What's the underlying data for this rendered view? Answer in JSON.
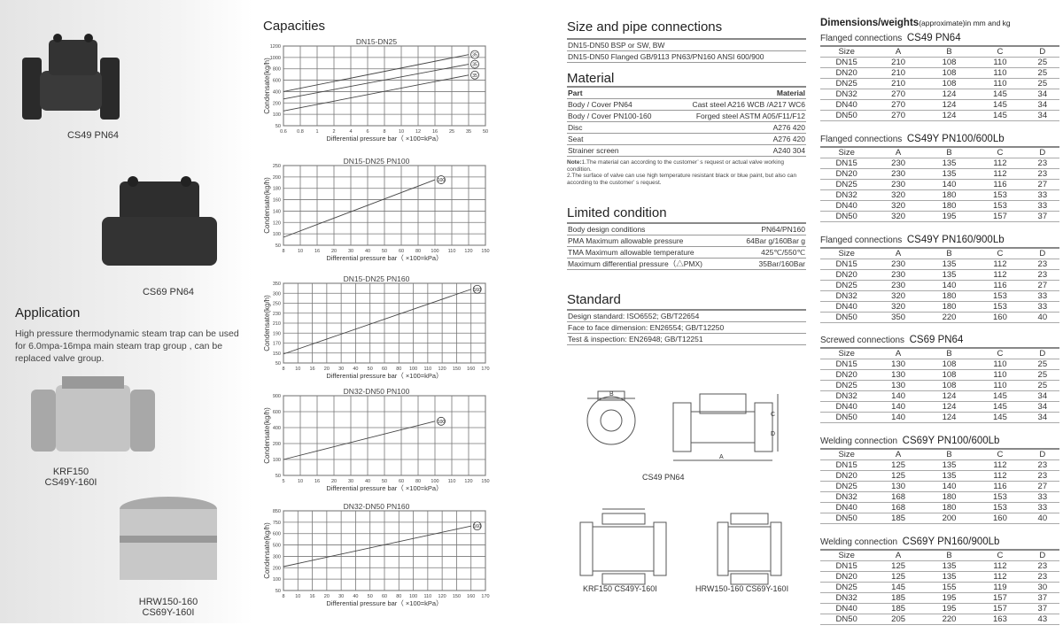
{
  "left": {
    "products": [
      {
        "label": "CS49 PN64"
      },
      {
        "label": "CS69 PN64"
      },
      {
        "label": "KRF150",
        "label2": "CS49Y-160I"
      },
      {
        "label": "HRW150-160",
        "label2": "CS69Y-160I"
      }
    ],
    "application_title": "Application",
    "application_text": "High pressure thermodynamic steam trap can be used for 6.0mpa-16mpa main steam trap group , can be replaced valve group."
  },
  "capacities_title": "Capacities",
  "chart_data": [
    {
      "type": "line",
      "title": "DN15-DN25",
      "xlabel": "Differential pressure bar（ ×100=kPa）",
      "ylabel": "Condensate(kg/h)",
      "xticks": [
        0.6,
        0.8,
        1,
        2,
        4,
        6,
        8,
        10,
        12,
        16,
        25,
        35,
        50
      ],
      "yticks": [
        50,
        100,
        200,
        400,
        600,
        800,
        1000,
        1200
      ],
      "grid": true,
      "series": [
        {
          "name": "35",
          "x": [
            0.6,
            35
          ],
          "y": [
            400,
            1050
          ]
        },
        {
          "name": "35",
          "x": [
            0.6,
            35
          ],
          "y": [
            270,
            880
          ]
        },
        {
          "name": "35",
          "x": [
            0.6,
            35
          ],
          "y": [
            130,
            690
          ]
        }
      ]
    },
    {
      "type": "line",
      "title": "DN15-DN25 PN100",
      "xlabel": "Differential pressure bar（ ×100=kPa）",
      "ylabel": "Condensate(kg/h)",
      "xticks": [
        8,
        10,
        16,
        20,
        30,
        40,
        50,
        60,
        80,
        100,
        110,
        120,
        150
      ],
      "yticks": [
        50,
        100,
        120,
        140,
        160,
        180,
        200,
        250
      ],
      "grid": true,
      "series": [
        {
          "name": "100",
          "x": [
            8,
            100
          ],
          "y": [
            85,
            195
          ]
        }
      ]
    },
    {
      "type": "line",
      "title": "DN15-DN25 PN160",
      "xlabel": "Differential pressure bar（ ×100=kPa）",
      "ylabel": "Condensate(kg/h)",
      "xticks": [
        8,
        10,
        16,
        20,
        30,
        40,
        50,
        60,
        80,
        100,
        110,
        120,
        150,
        160,
        170
      ],
      "yticks": [
        50,
        150,
        170,
        190,
        210,
        230,
        250,
        300,
        350
      ],
      "grid": true,
      "series": [
        {
          "name": "160",
          "x": [
            8,
            160
          ],
          "y": [
            140,
            320
          ]
        }
      ]
    },
    {
      "type": "line",
      "title": "DN32-DN50 PN100",
      "xlabel": "Differential pressure bar（ ×100=kPa）",
      "ylabel": "Condensate(kg/h)",
      "xticks": [
        5,
        10,
        16,
        20,
        30,
        40,
        50,
        60,
        80,
        100,
        110,
        120,
        150
      ],
      "yticks": [
        50,
        100,
        200,
        400,
        600,
        900
      ],
      "grid": true,
      "series": [
        {
          "name": "100",
          "x": [
            5,
            100
          ],
          "y": [
            100,
            480
          ]
        }
      ]
    },
    {
      "type": "line",
      "title": "DN32-DN50 PN160",
      "xlabel": "Differential pressure bar（ ×100=kPa）",
      "ylabel": "Condensate(kg/h)",
      "xticks": [
        8,
        10,
        16,
        20,
        30,
        40,
        50,
        60,
        80,
        100,
        110,
        120,
        150,
        160,
        170
      ],
      "yticks": [
        50,
        100,
        200,
        300,
        500,
        600,
        750,
        850
      ],
      "grid": true,
      "series": [
        {
          "name": "160",
          "x": [
            8,
            160
          ],
          "y": [
            210,
            700
          ]
        }
      ]
    }
  ],
  "size": {
    "title": "Size and pipe connections",
    "rows": [
      "DN15-DN50  BSP or SW, BW",
      "DN15-DN50 Flanged GB/9113 PN63/PN160 ANSI 600/900"
    ]
  },
  "material": {
    "title": "Material",
    "header": [
      "Part",
      "Material"
    ],
    "rows": [
      [
        "Body / Cover  PN64",
        "Cast steel A216 WCB /A217 WC6"
      ],
      [
        "Body / Cover  PN100-160",
        "Forged steel ASTM A05/F11/F12"
      ],
      [
        "Disc",
        "A276 420"
      ],
      [
        "Seat",
        "A276 420"
      ],
      [
        "Strainer screen",
        "A240 304"
      ]
    ],
    "note_label": "Note:",
    "note": "1.The material can according to the customer’ s request or actual valve working condition.",
    "note2": "2.The surface of valve can use high temperature resistant black or blue paint, but also can according to the customer’ s request."
  },
  "limited": {
    "title": "Limited condition",
    "rows": [
      [
        "Body design conditions",
        "PN64/PN160"
      ],
      [
        "PMA Maximum allowable pressure",
        "64Bar g/160Bar g"
      ],
      [
        "TMA Maximum allowable temperature",
        "425℃/550℃"
      ],
      [
        "Maximum differential pressure（△PMX)",
        "35Bar/160Bar"
      ]
    ]
  },
  "standard": {
    "title": "Standard",
    "rows": [
      "Design standard: ISO6552; GB/T22654",
      "Face to face dimension: EN26554; GB/T12250",
      "Test & inspection: EN26948; GB/T12251"
    ]
  },
  "drawings": {
    "labels": [
      "CS49 PN64",
      "KRF150   CS49Y-160I",
      "HRW150-160   CS69Y-160I"
    ],
    "dims": [
      "A",
      "B",
      "C",
      "D"
    ]
  },
  "dimensions": {
    "title": "Dimensions/weights",
    "subtitle": "(approximate)in mm and kg",
    "columns": [
      "Size",
      "A",
      "B",
      "C",
      "D"
    ],
    "tables": [
      {
        "type": "Flanged connections",
        "model": "CS49 PN64",
        "rows": [
          [
            "DN15",
            "210",
            "108",
            "110",
            "25"
          ],
          [
            "DN20",
            "210",
            "108",
            "110",
            "25"
          ],
          [
            "DN25",
            "210",
            "108",
            "110",
            "25"
          ],
          [
            "DN32",
            "270",
            "124",
            "145",
            "34"
          ],
          [
            "DN40",
            "270",
            "124",
            "145",
            "34"
          ],
          [
            "DN50",
            "270",
            "124",
            "145",
            "34"
          ]
        ]
      },
      {
        "type": "Flanged connections",
        "model": "CS49Y PN100/600Lb",
        "rows": [
          [
            "DN15",
            "230",
            "135",
            "112",
            "23"
          ],
          [
            "DN20",
            "230",
            "135",
            "112",
            "23"
          ],
          [
            "DN25",
            "230",
            "140",
            "116",
            "27"
          ],
          [
            "DN32",
            "320",
            "180",
            "153",
            "33"
          ],
          [
            "DN40",
            "320",
            "180",
            "153",
            "33"
          ],
          [
            "DN50",
            "320",
            "195",
            "157",
            "37"
          ]
        ]
      },
      {
        "type": "Flanged connections",
        "model": "CS49Y PN160/900Lb",
        "rows": [
          [
            "DN15",
            "230",
            "135",
            "112",
            "23"
          ],
          [
            "DN20",
            "230",
            "135",
            "112",
            "23"
          ],
          [
            "DN25",
            "230",
            "140",
            "116",
            "27"
          ],
          [
            "DN32",
            "320",
            "180",
            "153",
            "33"
          ],
          [
            "DN40",
            "320",
            "180",
            "153",
            "33"
          ],
          [
            "DN50",
            "350",
            "220",
            "160",
            "40"
          ]
        ]
      },
      {
        "type": "Screwed connections",
        "model": "CS69 PN64",
        "rows": [
          [
            "DN15",
            "130",
            "108",
            "110",
            "25"
          ],
          [
            "DN20",
            "130",
            "108",
            "110",
            "25"
          ],
          [
            "DN25",
            "130",
            "108",
            "110",
            "25"
          ],
          [
            "DN32",
            "140",
            "124",
            "145",
            "34"
          ],
          [
            "DN40",
            "140",
            "124",
            "145",
            "34"
          ],
          [
            "DN50",
            "140",
            "124",
            "145",
            "34"
          ]
        ]
      },
      {
        "type": "Welding connection",
        "model": "CS69Y PN100/600Lb",
        "rows": [
          [
            "DN15",
            "125",
            "135",
            "112",
            "23"
          ],
          [
            "DN20",
            "125",
            "135",
            "112",
            "23"
          ],
          [
            "DN25",
            "130",
            "140",
            "116",
            "27"
          ],
          [
            "DN32",
            "168",
            "180",
            "153",
            "33"
          ],
          [
            "DN40",
            "168",
            "180",
            "153",
            "33"
          ],
          [
            "DN50",
            "185",
            "200",
            "160",
            "40"
          ]
        ]
      },
      {
        "type": "Welding connection",
        "model": "CS69Y PN160/900Lb",
        "rows": [
          [
            "DN15",
            "125",
            "135",
            "112",
            "23"
          ],
          [
            "DN20",
            "125",
            "135",
            "112",
            "23"
          ],
          [
            "DN25",
            "145",
            "155",
            "119",
            "30"
          ],
          [
            "DN32",
            "185",
            "195",
            "157",
            "37"
          ],
          [
            "DN40",
            "185",
            "195",
            "157",
            "37"
          ],
          [
            "DN50",
            "205",
            "220",
            "163",
            "43"
          ]
        ]
      }
    ]
  }
}
